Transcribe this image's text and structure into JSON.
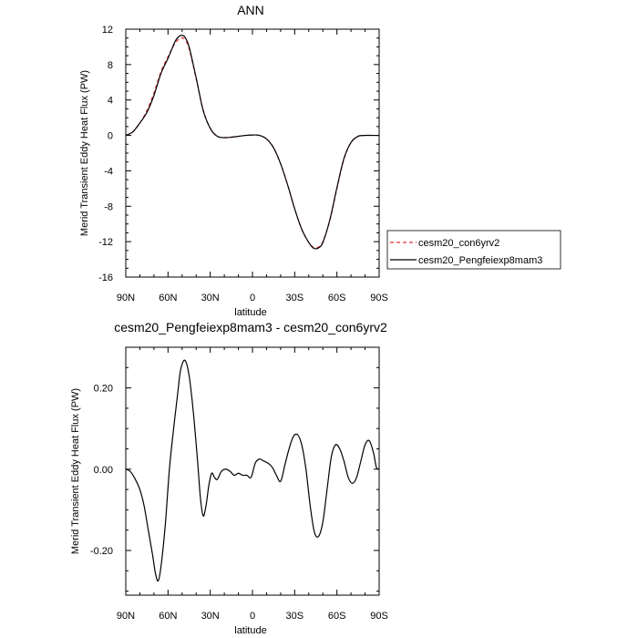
{
  "chart_data": [
    {
      "type": "line",
      "title": "ANN",
      "xlabel": "latitude",
      "ylabel": "Merid Transient Eddy Heat Flux (PW)",
      "xlim": [
        90,
        -90
      ],
      "ylim": [
        -16,
        12
      ],
      "x_ticks": [
        90,
        60,
        30,
        0,
        -30,
        -60,
        -90
      ],
      "x_tick_labels": [
        "90N",
        "60N",
        "30N",
        "0",
        "30S",
        "60S",
        "90S"
      ],
      "y_ticks": [
        -16,
        -12,
        -8,
        -4,
        0,
        4,
        8,
        12
      ],
      "y_tick_labels": [
        "-16",
        "-12",
        "-8",
        "-4",
        "0",
        "4",
        "8",
        "12"
      ],
      "legend_placement": "right",
      "series": [
        {
          "name": "cesm20_con6yrv2",
          "color": "#e03030",
          "dash": "dashed",
          "x": [
            90,
            85,
            80,
            75,
            70,
            65,
            60,
            55,
            52,
            50,
            48,
            45,
            40,
            35,
            30,
            25,
            20,
            15,
            10,
            5,
            0,
            -5,
            -10,
            -15,
            -20,
            -25,
            -30,
            -35,
            -40,
            -43,
            -45,
            -47,
            -50,
            -55,
            -60,
            -65,
            -70,
            -75,
            -80,
            -85,
            -90
          ],
          "y": [
            0,
            0.4,
            1.4,
            2.8,
            4.8,
            7.2,
            8.9,
            10.4,
            10.9,
            11.0,
            10.8,
            9.8,
            6.4,
            2.9,
            0.8,
            -0.1,
            -0.25,
            -0.2,
            -0.1,
            0,
            0.05,
            0,
            -0.4,
            -1.4,
            -3.2,
            -5.6,
            -8.3,
            -10.6,
            -12.1,
            -12.6,
            -12.7,
            -12.6,
            -12.0,
            -9.6,
            -6.0,
            -2.7,
            -0.8,
            -0.1,
            0,
            0,
            0
          ]
        },
        {
          "name": "cesm20_Pengfeiexp8mam3",
          "color": "#000000",
          "dash": "solid",
          "x": [
            90,
            85,
            80,
            75,
            70,
            65,
            60,
            55,
            52,
            50,
            48,
            45,
            40,
            35,
            30,
            25,
            20,
            15,
            10,
            5,
            0,
            -5,
            -10,
            -15,
            -20,
            -25,
            -30,
            -35,
            -40,
            -43,
            -45,
            -47,
            -50,
            -55,
            -60,
            -65,
            -70,
            -75,
            -80,
            -85,
            -90
          ],
          "y": [
            0,
            0.4,
            1.4,
            2.6,
            4.5,
            7.0,
            8.7,
            10.6,
            11.2,
            11.3,
            11.1,
            10.0,
            6.5,
            2.8,
            0.8,
            -0.1,
            -0.25,
            -0.2,
            -0.1,
            0,
            0.05,
            0,
            -0.4,
            -1.4,
            -3.2,
            -5.6,
            -8.3,
            -10.6,
            -12.1,
            -12.7,
            -12.8,
            -12.7,
            -12.1,
            -9.5,
            -5.9,
            -2.6,
            -0.8,
            -0.1,
            0,
            0,
            0
          ]
        }
      ]
    },
    {
      "type": "line",
      "title": "cesm20_Pengfeiexp8mam3 - cesm20_con6yrv2",
      "xlabel": "latitude",
      "ylabel": "Merid Transient Eddy Heat Flux (PW)",
      "xlim": [
        90,
        -90
      ],
      "ylim": [
        -0.31,
        0.3
      ],
      "x_ticks": [
        90,
        60,
        30,
        0,
        -30,
        -60,
        -90
      ],
      "x_tick_labels": [
        "90N",
        "60N",
        "30N",
        "0",
        "30S",
        "60S",
        "90S"
      ],
      "y_ticks": [
        -0.2,
        0,
        0.2
      ],
      "y_tick_labels": [
        "-0.20",
        "0.00",
        "0.20"
      ],
      "series": [
        {
          "color": "#000000",
          "dash": "solid",
          "x": [
            90,
            87,
            84,
            80,
            77,
            74,
            71,
            69,
            67,
            65,
            62,
            59,
            56,
            53,
            51,
            48,
            45,
            42,
            39,
            37,
            35,
            33,
            31,
            29,
            27,
            25,
            22,
            19,
            16,
            13,
            10,
            7,
            4,
            1,
            -2,
            -5,
            -8,
            -11,
            -14,
            -17,
            -20,
            -23,
            -26,
            -29,
            -32,
            -35,
            -38,
            -41,
            -44,
            -47,
            -50,
            -53,
            -56,
            -59,
            -62,
            -65,
            -68,
            -71,
            -74,
            -77,
            -80,
            -83,
            -86,
            -88,
            -90
          ],
          "y": [
            0,
            -0.005,
            -0.02,
            -0.05,
            -0.09,
            -0.15,
            -0.21,
            -0.255,
            -0.275,
            -0.24,
            -0.14,
            0,
            0.1,
            0.19,
            0.245,
            0.268,
            0.23,
            0.14,
            0.02,
            -0.07,
            -0.115,
            -0.09,
            -0.04,
            -0.01,
            -0.02,
            -0.025,
            -0.005,
            0.0,
            -0.005,
            -0.015,
            -0.01,
            -0.015,
            -0.015,
            -0.02,
            0.015,
            0.025,
            0.02,
            0.015,
            0.005,
            -0.015,
            -0.03,
            0.01,
            0.05,
            0.08,
            0.085,
            0.06,
            0.0,
            -0.09,
            -0.155,
            -0.165,
            -0.13,
            -0.05,
            0.03,
            0.06,
            0.05,
            0.02,
            -0.02,
            -0.035,
            -0.02,
            0.02,
            0.06,
            0.07,
            0.04,
            0.005,
            0.0
          ]
        }
      ]
    }
  ]
}
